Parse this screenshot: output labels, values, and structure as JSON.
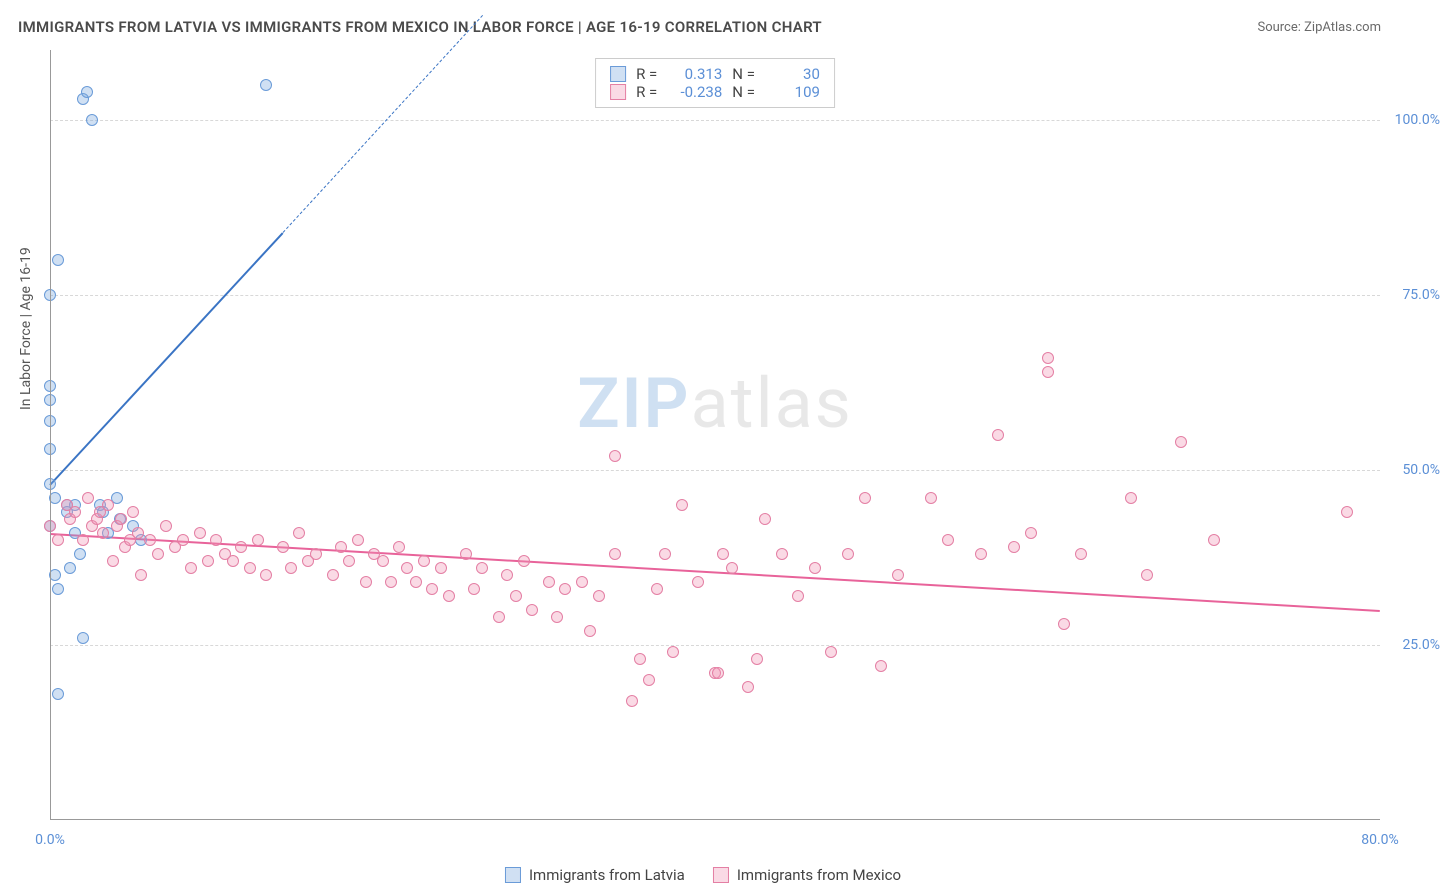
{
  "title": "IMMIGRANTS FROM LATVIA VS IMMIGRANTS FROM MEXICO IN LABOR FORCE | AGE 16-19 CORRELATION CHART",
  "source_label": "Source: ",
  "source_name": "ZipAtlas.com",
  "y_axis_label": "In Labor Force | Age 16-19",
  "watermark_a": "ZIP",
  "watermark_b": "atlas",
  "chart": {
    "type": "scatter",
    "xlim": [
      0,
      80
    ],
    "ylim": [
      0,
      110
    ],
    "x_ticks": [
      0,
      80
    ],
    "x_tick_labels": [
      "0.0%",
      "80.0%"
    ],
    "y_ticks": [
      25,
      50,
      75,
      100
    ],
    "y_tick_labels": [
      "25.0%",
      "50.0%",
      "75.0%",
      "100.0%"
    ],
    "grid_color": "#d8d8d8",
    "axis_color": "#999999",
    "background_color": "#ffffff",
    "tick_label_color": "#5b8fd6",
    "tick_fontsize": 14,
    "series": [
      {
        "name": "Immigrants from Latvia",
        "color_fill": "rgba(120,165,220,0.35)",
        "color_stroke": "#6a9bd8",
        "marker_size": 12,
        "r_value": "0.313",
        "n_value": "30",
        "trend": {
          "x1": 0,
          "y1": 48,
          "x2": 14,
          "y2": 84,
          "dashed_x2": 26,
          "dashed_y2": 115,
          "color": "#3a74c4",
          "width": 2
        },
        "points": [
          [
            0,
            48
          ],
          [
            0,
            75
          ],
          [
            0,
            60
          ],
          [
            0,
            62
          ],
          [
            0,
            57
          ],
          [
            0,
            53
          ],
          [
            0,
            42
          ],
          [
            0.3,
            35
          ],
          [
            0.5,
            33
          ],
          [
            0.5,
            80
          ],
          [
            1,
            45
          ],
          [
            1,
            44
          ],
          [
            1.5,
            41
          ],
          [
            1.8,
            38
          ],
          [
            2,
            26
          ],
          [
            2,
            103
          ],
          [
            2.2,
            104
          ],
          [
            2.5,
            100
          ],
          [
            3,
            45
          ],
          [
            3.2,
            44
          ],
          [
            3.5,
            41
          ],
          [
            4,
            46
          ],
          [
            4.2,
            43
          ],
          [
            5,
            42
          ],
          [
            5.5,
            40
          ],
          [
            0.5,
            18
          ],
          [
            0.3,
            46
          ],
          [
            1.2,
            36
          ],
          [
            1.5,
            45
          ],
          [
            13,
            105
          ]
        ]
      },
      {
        "name": "Immigrants from Mexico",
        "color_fill": "rgba(240,150,180,0.35)",
        "color_stroke": "#e47fa4",
        "marker_size": 12,
        "r_value": "-0.238",
        "n_value": "109",
        "trend": {
          "x1": 0,
          "y1": 41,
          "x2": 80,
          "y2": 30,
          "color": "#e8639a",
          "width": 2
        },
        "points": [
          [
            0,
            42
          ],
          [
            0.5,
            40
          ],
          [
            1,
            45
          ],
          [
            1.2,
            43
          ],
          [
            1.5,
            44
          ],
          [
            2,
            40
          ],
          [
            2.3,
            46
          ],
          [
            2.5,
            42
          ],
          [
            2.8,
            43
          ],
          [
            3,
            44
          ],
          [
            3.2,
            41
          ],
          [
            3.5,
            45
          ],
          [
            3.8,
            37
          ],
          [
            4,
            42
          ],
          [
            4.3,
            43
          ],
          [
            4.5,
            39
          ],
          [
            4.8,
            40
          ],
          [
            5,
            44
          ],
          [
            5.3,
            41
          ],
          [
            5.5,
            35
          ],
          [
            6,
            40
          ],
          [
            6.5,
            38
          ],
          [
            7,
            42
          ],
          [
            7.5,
            39
          ],
          [
            8,
            40
          ],
          [
            8.5,
            36
          ],
          [
            9,
            41
          ],
          [
            9.5,
            37
          ],
          [
            10,
            40
          ],
          [
            10.5,
            38
          ],
          [
            11,
            37
          ],
          [
            11.5,
            39
          ],
          [
            12,
            36
          ],
          [
            12.5,
            40
          ],
          [
            13,
            35
          ],
          [
            14,
            39
          ],
          [
            14.5,
            36
          ],
          [
            15,
            41
          ],
          [
            15.5,
            37
          ],
          [
            16,
            38
          ],
          [
            17,
            35
          ],
          [
            17.5,
            39
          ],
          [
            18,
            37
          ],
          [
            18.5,
            40
          ],
          [
            19,
            34
          ],
          [
            19.5,
            38
          ],
          [
            20,
            37
          ],
          [
            20.5,
            34
          ],
          [
            21,
            39
          ],
          [
            21.5,
            36
          ],
          [
            22,
            34
          ],
          [
            22.5,
            37
          ],
          [
            23,
            33
          ],
          [
            23.5,
            36
          ],
          [
            24,
            32
          ],
          [
            25,
            38
          ],
          [
            25.5,
            33
          ],
          [
            26,
            36
          ],
          [
            27,
            29
          ],
          [
            27.5,
            35
          ],
          [
            28,
            32
          ],
          [
            28.5,
            37
          ],
          [
            29,
            30
          ],
          [
            30,
            34
          ],
          [
            30.5,
            29
          ],
          [
            31,
            33
          ],
          [
            32,
            34
          ],
          [
            32.5,
            27
          ],
          [
            33,
            32
          ],
          [
            34,
            38
          ],
          [
            34,
            52
          ],
          [
            35,
            17
          ],
          [
            35.5,
            23
          ],
          [
            36,
            20
          ],
          [
            36.5,
            33
          ],
          [
            37,
            38
          ],
          [
            37.5,
            24
          ],
          [
            38,
            45
          ],
          [
            39,
            34
          ],
          [
            40,
            21
          ],
          [
            40.2,
            21
          ],
          [
            40.5,
            38
          ],
          [
            41,
            36
          ],
          [
            42,
            19
          ],
          [
            42.5,
            23
          ],
          [
            43,
            43
          ],
          [
            44,
            38
          ],
          [
            45,
            32
          ],
          [
            46,
            36
          ],
          [
            47,
            24
          ],
          [
            48,
            38
          ],
          [
            49,
            46
          ],
          [
            50,
            22
          ],
          [
            51,
            35
          ],
          [
            53,
            46
          ],
          [
            54,
            40
          ],
          [
            56,
            38
          ],
          [
            57,
            55
          ],
          [
            58,
            39
          ],
          [
            59,
            41
          ],
          [
            60,
            64
          ],
          [
            60,
            66
          ],
          [
            61,
            28
          ],
          [
            62,
            38
          ],
          [
            65,
            46
          ],
          [
            66,
            35
          ],
          [
            68,
            54
          ],
          [
            70,
            40
          ],
          [
            78,
            44
          ]
        ]
      }
    ],
    "legend": {
      "r_label": "R =",
      "n_label": "N ="
    }
  }
}
